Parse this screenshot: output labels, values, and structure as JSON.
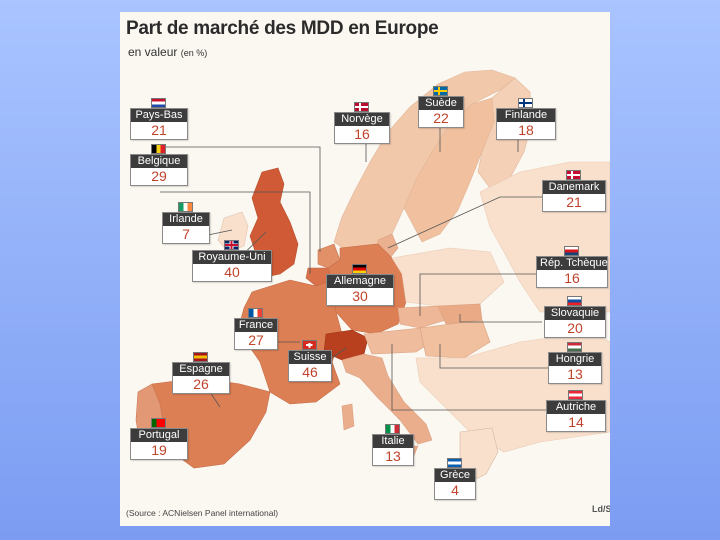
{
  "title": "Part de marché des MDD en Europe",
  "subtitle": "en valeur",
  "subtitle_unit": "(en %)",
  "source": "(Source : ACNielsen Panel international)",
  "logo_text": "Ld/Sf",
  "colors": {
    "highest": "#cf5a35",
    "high": "#dd7f55",
    "medium": "#e9a781",
    "low": "#f2c8aa",
    "lowest": "#f8e0cd",
    "sea": "#fbf7f1"
  },
  "countries": [
    {
      "id": "pays-bas",
      "name": "Pays-Bas",
      "value": "21",
      "flag": [
        "#c8102e",
        "#ffffff",
        "#1f4aa8"
      ],
      "flag_dir": "h"
    },
    {
      "id": "belgique",
      "name": "Belgique",
      "value": "29",
      "flag": [
        "#000000",
        "#f7d118",
        "#e0202a"
      ],
      "flag_dir": "v"
    },
    {
      "id": "irlande",
      "name": "Irlande",
      "value": "7",
      "flag": [
        "#169b62",
        "#ffffff",
        "#ff883e"
      ],
      "flag_dir": "v"
    },
    {
      "id": "royaume-uni",
      "name": "Royaume-Uni",
      "value": "40",
      "flag": [
        "#012169",
        "#ffffff",
        "#c8102e"
      ],
      "flag_dir": "uk"
    },
    {
      "id": "norvege",
      "name": "Norvège",
      "value": "16",
      "flag": [
        "#ba0c2f",
        "#ffffff",
        "#00205b"
      ],
      "flag_dir": "nordic"
    },
    {
      "id": "suede",
      "name": "Suède",
      "value": "22",
      "flag": [
        "#006aa7",
        "#fecc00",
        "#006aa7"
      ],
      "flag_dir": "nordic"
    },
    {
      "id": "finlande",
      "name": "Finlande",
      "value": "18",
      "flag": [
        "#ffffff",
        "#003580",
        "#ffffff"
      ],
      "flag_dir": "nordic"
    },
    {
      "id": "danemark",
      "name": "Danemark",
      "value": "21",
      "flag": [
        "#c60c30",
        "#ffffff",
        "#c60c30"
      ],
      "flag_dir": "nordic"
    },
    {
      "id": "allemagne",
      "name": "Allemagne",
      "value": "30",
      "flag": [
        "#000000",
        "#dd0000",
        "#ffce00"
      ],
      "flag_dir": "h"
    },
    {
      "id": "rep-tcheque",
      "name": "Rép. Tchèque",
      "value": "16",
      "flag": [
        "#ffffff",
        "#d7141a",
        "#11457e"
      ],
      "flag_dir": "h"
    },
    {
      "id": "slovaquie",
      "name": "Slovaquie",
      "value": "20",
      "flag": [
        "#ffffff",
        "#0b4ea2",
        "#ee1c25"
      ],
      "flag_dir": "h"
    },
    {
      "id": "france",
      "name": "France",
      "value": "27",
      "flag": [
        "#0055a4",
        "#ffffff",
        "#ef4135"
      ],
      "flag_dir": "v"
    },
    {
      "id": "suisse",
      "name": "Suisse",
      "value": "46",
      "flag": [
        "#d52b1e",
        "#ffffff",
        "#d52b1e"
      ],
      "flag_dir": "swiss"
    },
    {
      "id": "hongrie",
      "name": "Hongrie",
      "value": "13",
      "flag": [
        "#cd2a3e",
        "#ffffff",
        "#436f4d"
      ],
      "flag_dir": "h"
    },
    {
      "id": "espagne",
      "name": "Espagne",
      "value": "26",
      "flag": [
        "#aa151b",
        "#f1bf00",
        "#aa151b"
      ],
      "flag_dir": "h"
    },
    {
      "id": "autriche",
      "name": "Autriche",
      "value": "14",
      "flag": [
        "#ed2939",
        "#ffffff",
        "#ed2939"
      ],
      "flag_dir": "h"
    },
    {
      "id": "portugal",
      "name": "Portugal",
      "value": "19",
      "flag": [
        "#006600",
        "#ff0000",
        "#ff0000"
      ],
      "flag_dir": "v"
    },
    {
      "id": "italie",
      "name": "Italie",
      "value": "13",
      "flag": [
        "#009246",
        "#ffffff",
        "#ce2b37"
      ],
      "flag_dir": "v"
    },
    {
      "id": "grece",
      "name": "Grèce",
      "value": "4",
      "flag": [
        "#0d5eaf",
        "#ffffff",
        "#0d5eaf"
      ],
      "flag_dir": "h"
    }
  ]
}
